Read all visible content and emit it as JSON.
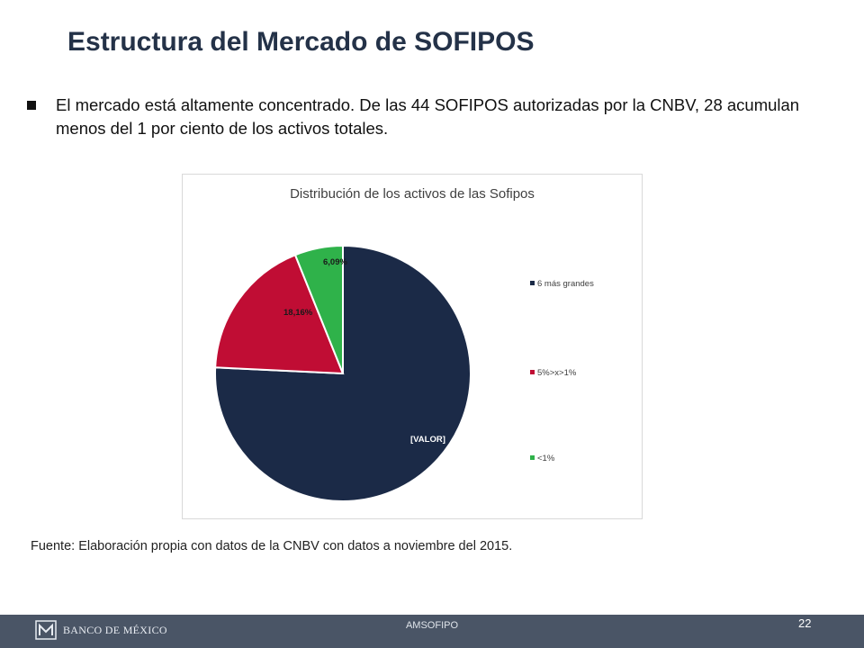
{
  "slide": {
    "title": "Estructura del Mercado de SOFIPOS",
    "bullet": "El mercado está altamente concentrado. De las 44 SOFIPOS autorizadas por la CNBV, 28 acumulan menos del 1 por ciento de los activos totales.",
    "source": "Fuente: Elaboración propia con datos de la CNBV con datos a noviembre del 2015."
  },
  "chart_data": {
    "type": "pie",
    "title": "Distribución de los activos de las Sofipos",
    "categories": [
      "6 más grandes",
      "5%>x>1%",
      "<1%"
    ],
    "values": [
      75.75,
      18.16,
      6.09
    ],
    "data_labels": [
      "[VALOR]",
      "18,16%",
      "6,09%"
    ],
    "colors": [
      "#1b2a47",
      "#c00d34",
      "#2fb24a"
    ],
    "legend_position": "right"
  },
  "footer": {
    "logo_text": "BANCO DE MÉXICO",
    "center_text": "AMSOFIPO",
    "page_number": "22"
  }
}
